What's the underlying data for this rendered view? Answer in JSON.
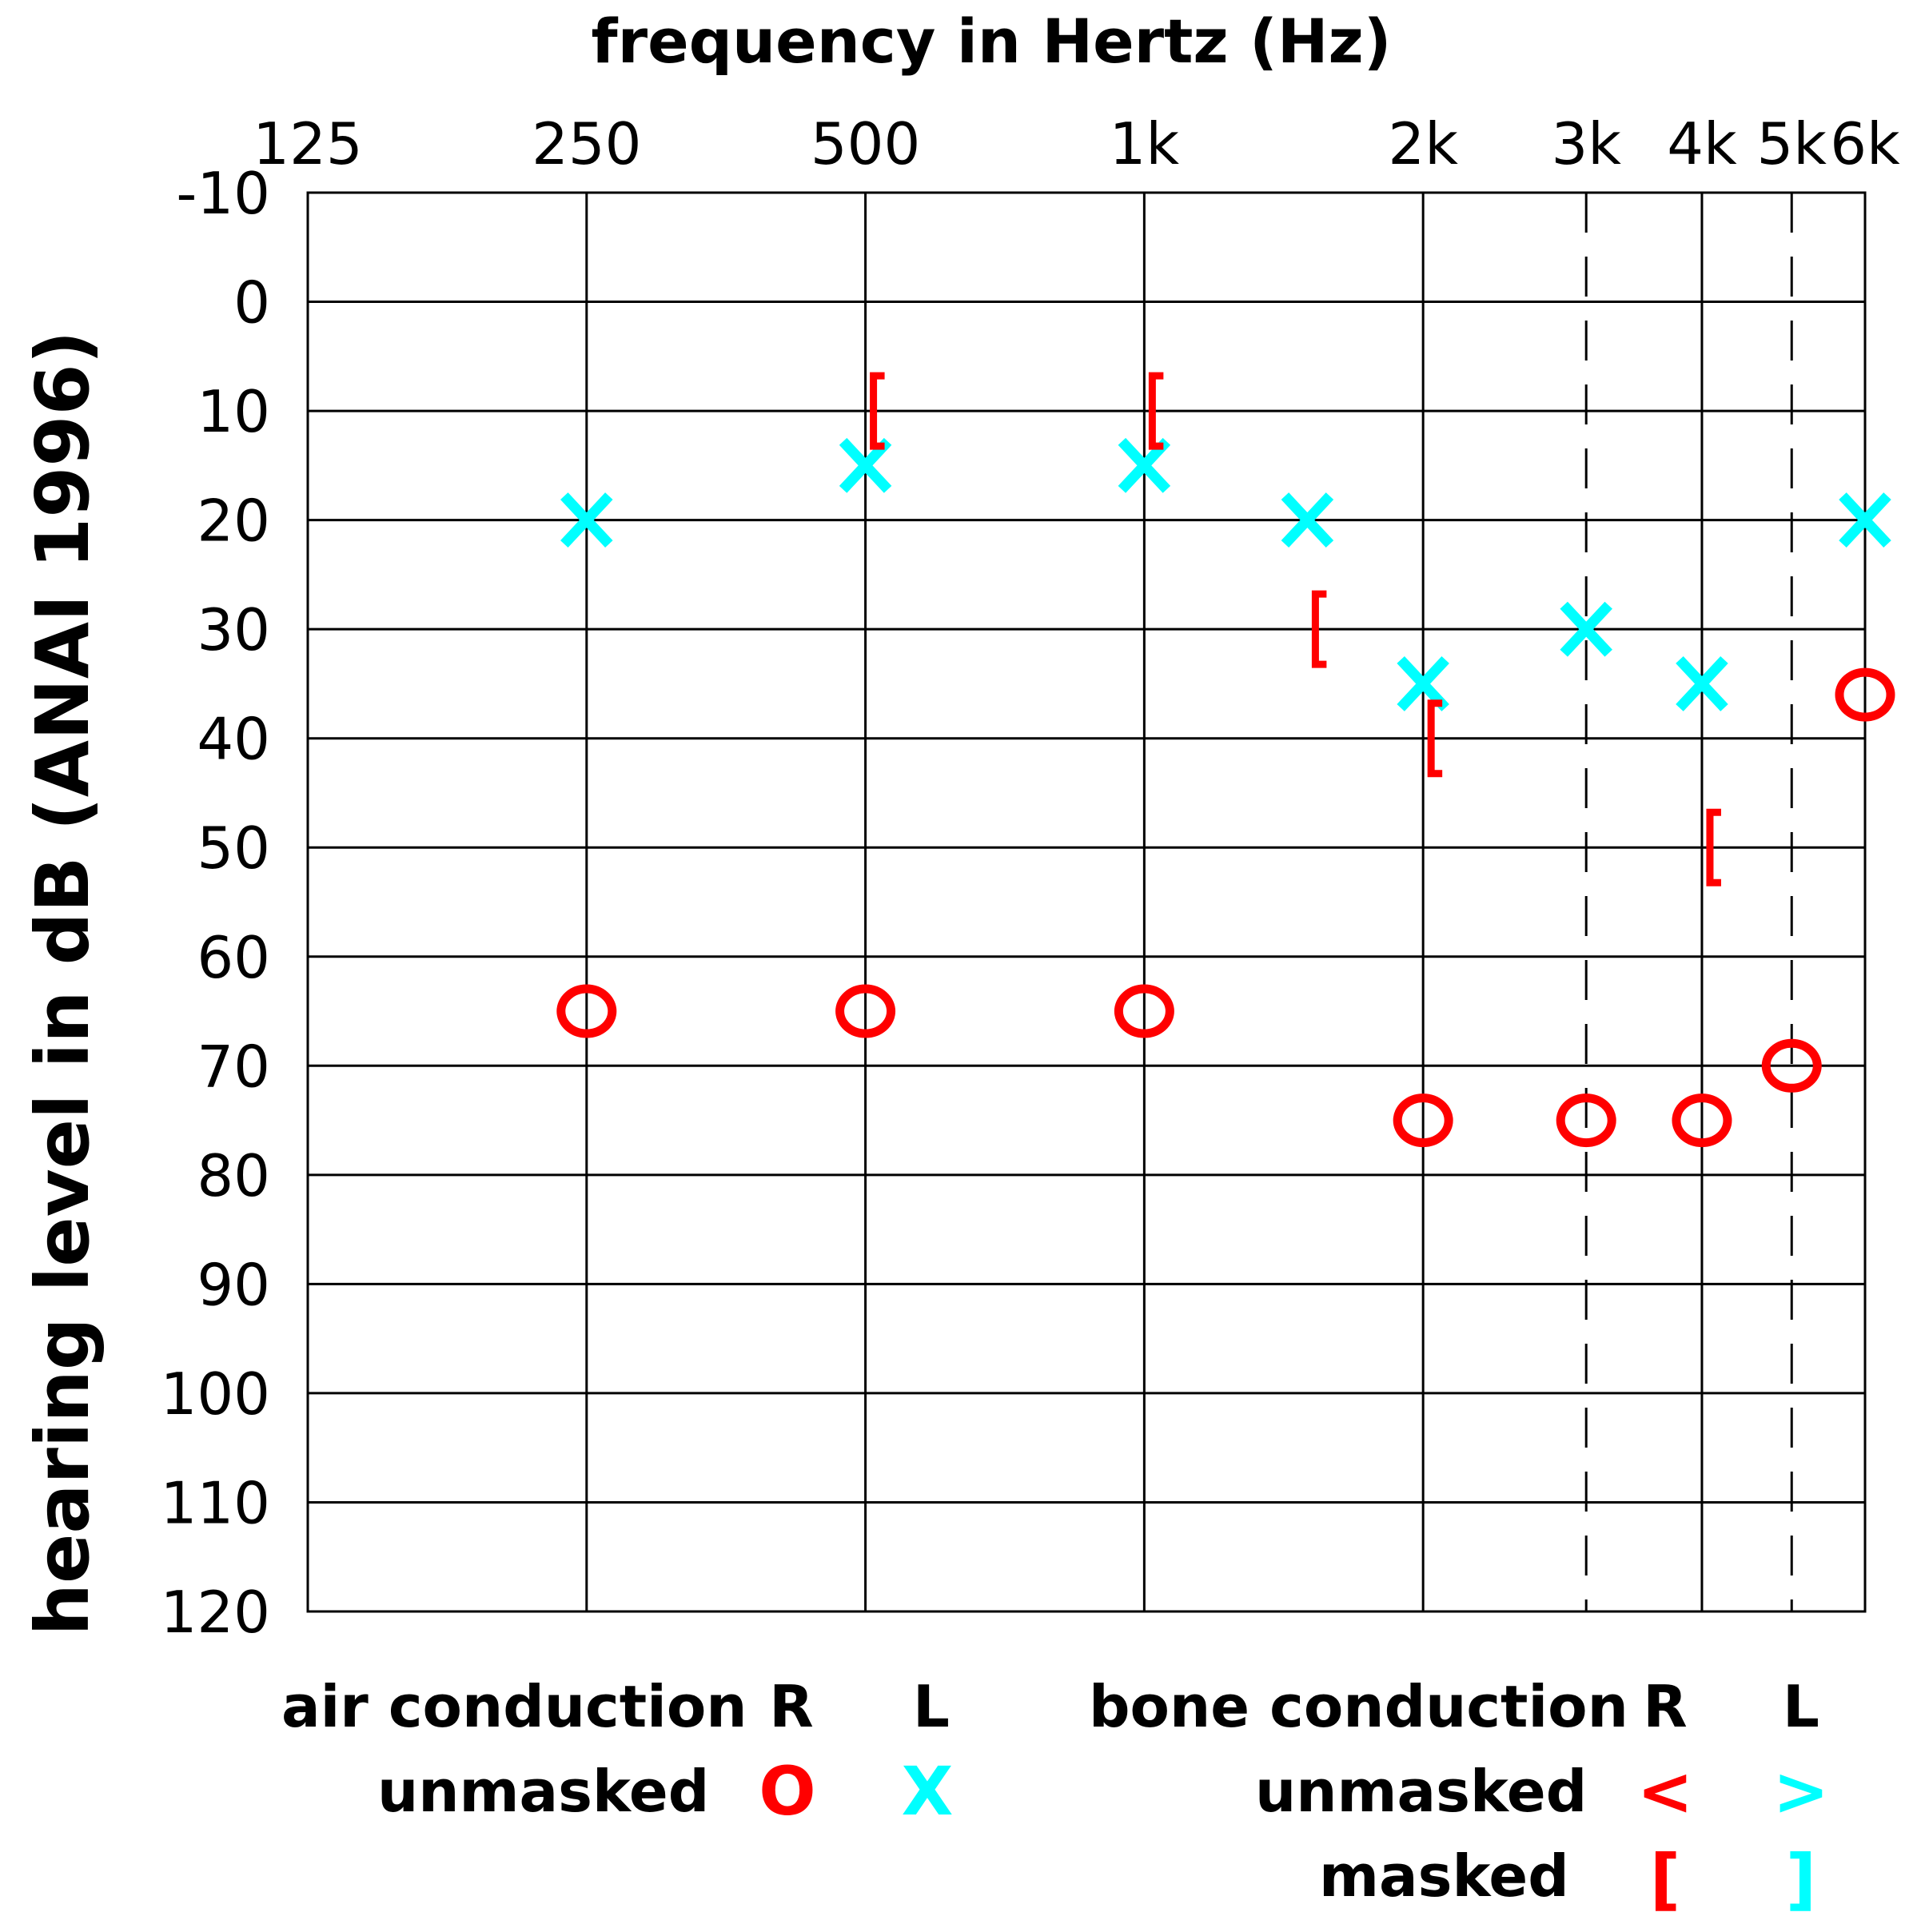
{
  "chart_data": {
    "type": "scatter",
    "title": "frequency in Hertz (Hz)",
    "xlabel": "frequency in Hertz (Hz)",
    "ylabel": "hearing level in dB (ANAI 1996)",
    "x_ticks": [
      "125",
      "250",
      "500",
      "1k",
      "2k",
      "3k",
      "4k",
      "5k",
      "6k"
    ],
    "x_scale": "log2 (octave) frequency axis",
    "dashed_gridlines_at": [
      "3k",
      "5k"
    ],
    "y_ticks": [
      "-10",
      "0",
      "10",
      "20",
      "30",
      "40",
      "50",
      "60",
      "70",
      "80",
      "90",
      "100",
      "110",
      "120"
    ],
    "ylim": [
      -10,
      120
    ],
    "y_inverted": true,
    "grid": true,
    "series": [
      {
        "name": "air conduction R unmasked",
        "symbol": "O",
        "color": "#ff0000",
        "points": [
          {
            "x": "250",
            "y": 65
          },
          {
            "x": "500",
            "y": 65
          },
          {
            "x": "1k",
            "y": 65
          },
          {
            "x": "2k",
            "y": 75
          },
          {
            "x": "3k",
            "y": 75
          },
          {
            "x": "4k",
            "y": 75
          },
          {
            "x": "5k",
            "y": 70
          },
          {
            "x": "6k",
            "y": 36
          }
        ]
      },
      {
        "name": "air conduction L unmasked",
        "symbol": "X",
        "color": "#00ffff",
        "points": [
          {
            "x": "250",
            "y": 20
          },
          {
            "x": "500",
            "y": 15
          },
          {
            "x": "1k",
            "y": 15
          },
          {
            "x": "1.5k",
            "y": 20
          },
          {
            "x": "2k",
            "y": 35
          },
          {
            "x": "3k",
            "y": 30
          },
          {
            "x": "4k",
            "y": 35
          },
          {
            "x": "6k",
            "y": 20
          }
        ]
      },
      {
        "name": "bone conduction R masked",
        "symbol": "[",
        "color": "#ff0000",
        "points": [
          {
            "x": "500",
            "y": 10
          },
          {
            "x": "1k",
            "y": 10
          },
          {
            "x": "1.5k",
            "y": 30
          },
          {
            "x": "2k",
            "y": 40
          },
          {
            "x": "4k",
            "y": 50
          }
        ]
      }
    ]
  },
  "legend": {
    "air_conduction": "air conduction",
    "bone_conduction": "bone conduction",
    "r_label": "R",
    "l_label": "L",
    "unmasked": "unmasked",
    "masked": "masked",
    "air_r_unmasked_symbol": "O",
    "air_l_unmasked_symbol": "X",
    "bone_r_unmasked_symbol": "<",
    "bone_l_unmasked_symbol": ">",
    "bone_r_masked_symbol": "[",
    "bone_l_masked_symbol": "]",
    "right_color": "#ff0000",
    "left_color": "#00ffff"
  }
}
